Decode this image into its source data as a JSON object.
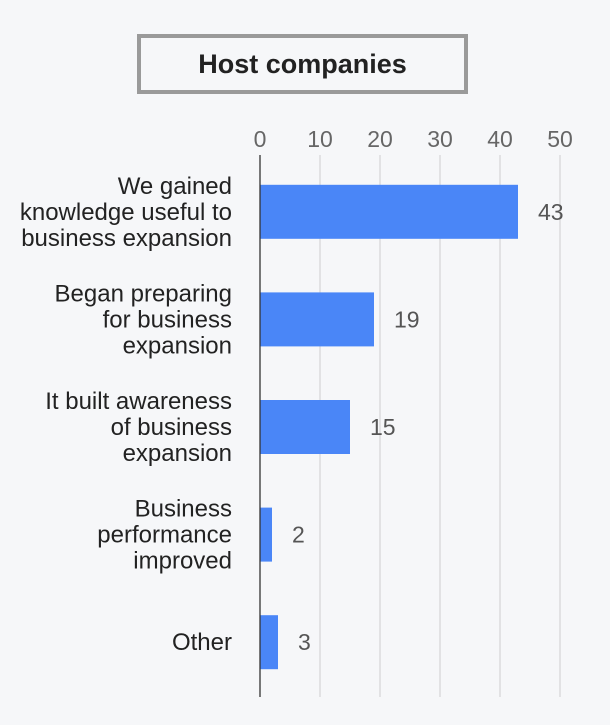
{
  "title": "Host companies",
  "colors": {
    "bar": "#4a86f7",
    "grid": "#d8d8d8",
    "axis": "#333333",
    "title_border": "#9a9a9a",
    "background": "#f6f7f9"
  },
  "chart_data": {
    "type": "bar",
    "orientation": "horizontal",
    "title": "Host companies",
    "categories": [
      [
        "We gained",
        "knowledge useful to",
        "business expansion"
      ],
      [
        "Began preparing",
        "for business",
        "expansion"
      ],
      [
        "It built awareness",
        "of business",
        "expansion"
      ],
      [
        "Business",
        "performance",
        "improved"
      ],
      [
        "Other"
      ]
    ],
    "values": [
      43,
      19,
      15,
      2,
      3
    ],
    "xlim": [
      0,
      50
    ],
    "ticks": [
      0,
      10,
      20,
      30,
      40,
      50
    ],
    "tick_labels": [
      "0",
      "10",
      "20",
      "30",
      "40",
      "50"
    ],
    "axis_position": "top",
    "grid": true,
    "data_labels": [
      "43",
      "19",
      "15",
      "2",
      "3"
    ]
  }
}
